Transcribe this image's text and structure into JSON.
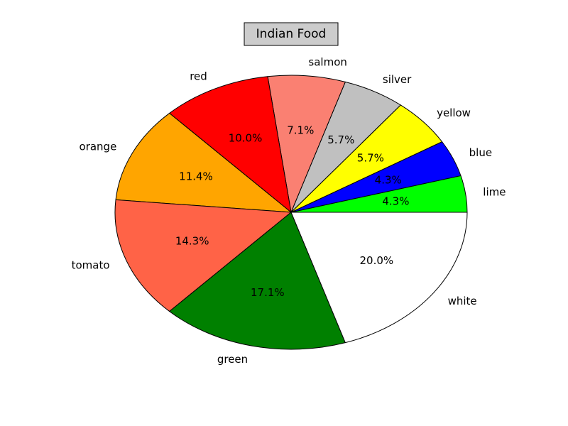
{
  "chart_data": {
    "type": "pie",
    "title": "Indian Food",
    "slices": [
      {
        "label": "lime",
        "value": 4.3,
        "pct_label": "4.3%",
        "color": "#00ff00"
      },
      {
        "label": "blue",
        "value": 4.3,
        "pct_label": "4.3%",
        "color": "#0000ff"
      },
      {
        "label": "yellow",
        "value": 5.7,
        "pct_label": "5.7%",
        "color": "#ffff00"
      },
      {
        "label": "silver",
        "value": 5.7,
        "pct_label": "5.7%",
        "color": "#c0c0c0"
      },
      {
        "label": "salmon",
        "value": 7.1,
        "pct_label": "7.1%",
        "color": "#fa8072"
      },
      {
        "label": "red",
        "value": 10.0,
        "pct_label": "10.0%",
        "color": "#ff0000"
      },
      {
        "label": "orange",
        "value": 11.4,
        "pct_label": "11.4%",
        "color": "#ffa500"
      },
      {
        "label": "tomato",
        "value": 14.3,
        "pct_label": "14.3%",
        "color": "#ff6347"
      },
      {
        "label": "green",
        "value": 17.1,
        "pct_label": "17.1%",
        "color": "#008000"
      },
      {
        "label": "white",
        "value": 20.0,
        "pct_label": "20.0%",
        "color": "#ffffff"
      }
    ],
    "start_angle_deg": 0,
    "direction": "counterclockwise",
    "legend": "none"
  }
}
